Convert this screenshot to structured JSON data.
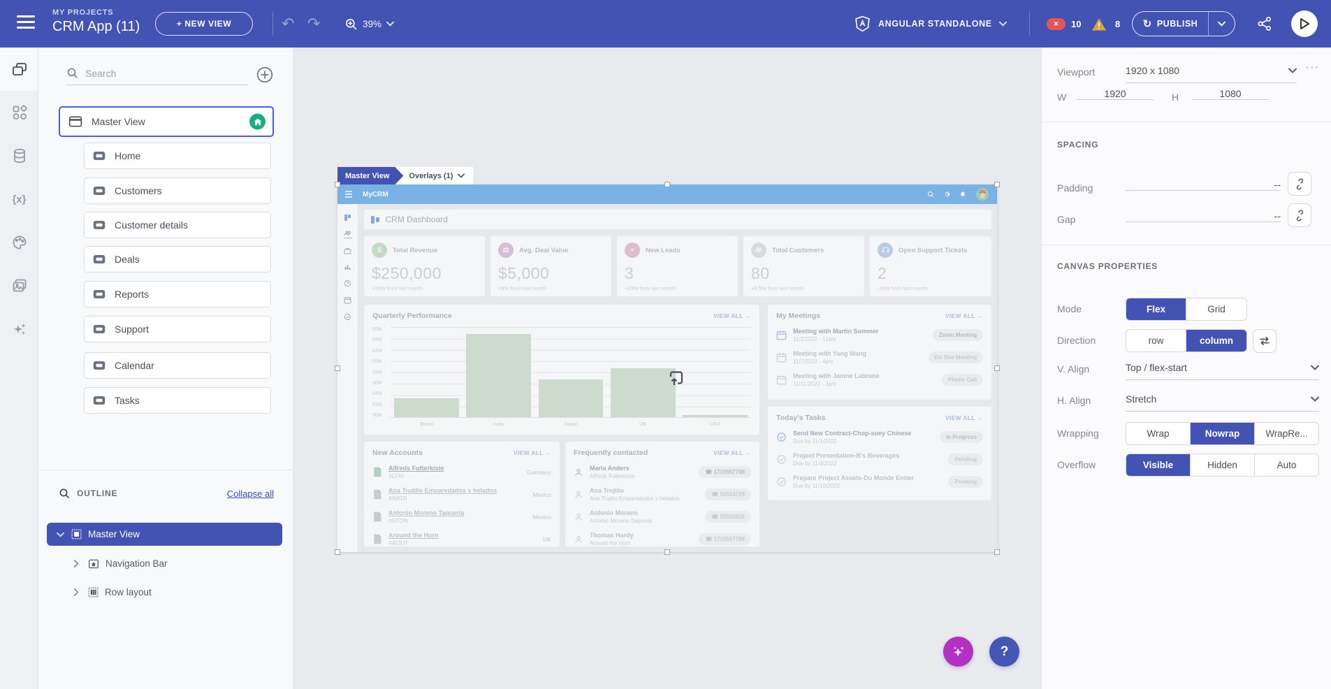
{
  "colors": {
    "accent_indigo": "#4353b4",
    "selection_blue": "#4d5be0",
    "app_header_blue": "#1e86e0",
    "home_badge_green": "#15b081",
    "error_red": "#e4555a",
    "warning_yellow": "#dda53e",
    "bar_green": "#b6ceb4",
    "fab_purple": "#b230c4",
    "fab_help_blue": "#4456b8"
  },
  "icons": {
    "hamburger": "menu",
    "undo": "↶",
    "redo": "↷",
    "zoom_in": "magnifier-plus",
    "chevron_down": "v",
    "share": "share-nodes",
    "play": "triangle",
    "publish": "↻",
    "search": "magnifier",
    "add_circle": "plus-circle",
    "home": "house",
    "phone": "☎"
  },
  "topbar": {
    "my_projects": "MY PROJECTS",
    "app_title": "CRM App (11)",
    "new_view": "+ NEW VIEW",
    "zoom": "39%",
    "framework": "ANGULAR STANDALONE",
    "error_count": "10",
    "warning_count": "8",
    "publish": "PUBLISH"
  },
  "rail": {
    "items": [
      "views",
      "components",
      "data",
      "variables",
      "theme",
      "assets",
      "ai-assistant"
    ]
  },
  "views_panel": {
    "search_placeholder": "Search",
    "master_view": "Master View",
    "items": [
      "Home",
      "Customers",
      "Customer details",
      "Deals",
      "Reports",
      "Support",
      "Calendar",
      "Tasks"
    ],
    "outline": {
      "title": "OUTLINE",
      "collapse_all": "Collapse all",
      "tree": [
        "Master View",
        "Navigation Bar",
        "Row layout"
      ]
    }
  },
  "canvas": {
    "tabs": {
      "master": "Master View",
      "overlays": "Overlays (1)"
    },
    "app": {
      "title": "MyCRM",
      "dashboard_title": "CRM Dashboard",
      "view_all": "VIEW ALL →",
      "stats": [
        {
          "label": "Total Revenue",
          "value": "$250,000",
          "delta": "+15%",
          "note": "from last month",
          "icon": "dollar",
          "color": "#a6cfa8"
        },
        {
          "label": "Avg. Deal Value",
          "value": "$5,000",
          "delta": "+5%",
          "note": "from last month",
          "icon": "scales",
          "color": "#c79ac9"
        },
        {
          "label": "New Leads",
          "value": "3",
          "delta": "+23%",
          "note": "from last month",
          "icon": "person-plus",
          "color": "#d898b4"
        },
        {
          "label": "Total Customers",
          "value": "80",
          "delta": "+0.5%",
          "note": "from last month",
          "icon": "people",
          "color": "#c9ccd1"
        },
        {
          "label": "Open Support Tickets",
          "value": "2",
          "delta": "-10%",
          "note": "from last month",
          "icon": "headset",
          "color": "#92b6dd"
        }
      ],
      "meetings": {
        "title": "My Meetings",
        "items": [
          {
            "title": "Meeting with Martin Sommer",
            "datetime": "11/2/2022 - 11am",
            "badge": "Zoom Meeting"
          },
          {
            "title": "Meeting with Yang Wang",
            "datetime": "11/7/2022 - 4pm",
            "badge": "On Site Meeting"
          },
          {
            "title": "Meeting with Janine Labrune",
            "datetime": "11/11/2022 - 3pm",
            "badge": "Phone Call"
          }
        ]
      },
      "tasks": {
        "title": "Today's Tasks",
        "items": [
          {
            "title": "Send New Contract-Chop-suey Chinese",
            "due": "Due by 11/1/2022",
            "badge": "In Progress"
          },
          {
            "title": "Project Presentation-B's Beverages",
            "due": "Due by 11/4/2022",
            "badge": "Pending"
          },
          {
            "title": "Prepare Project Assets-Du Monde Entier",
            "due": "Due by 11/10/2022",
            "badge": "Pending"
          }
        ]
      },
      "accounts": {
        "title": "New Accounts",
        "items": [
          {
            "name": "Alfreds Futterkiste",
            "code": "ALFKI",
            "country": "Germany"
          },
          {
            "name": "Ana Trujillo Emparedados y helados",
            "code": "ANATR",
            "country": "Mexico"
          },
          {
            "name": "Antonio Moreno Taqueria",
            "code": "ANTON",
            "country": "Mexico"
          },
          {
            "name": "Around the Horn",
            "code": "AROUT",
            "country": "UK"
          }
        ]
      },
      "contacts": {
        "title": "Frequently contacted",
        "items": [
          {
            "name": "Maria Anders",
            "company": "Alfreds Futterkiste",
            "phone": "1715557788"
          },
          {
            "name": "Ana Trujillo",
            "company": "Ana Trujillo Emparedados y helados",
            "phone": "55554729"
          },
          {
            "name": "Antonio Moreno",
            "company": "Antonio Moreno Taqueria",
            "phone": "55553932"
          },
          {
            "name": "Thomas Hardy",
            "company": "Around the Horn",
            "phone": "1715557788"
          }
        ]
      }
    }
  },
  "chart_data": {
    "type": "bar",
    "title": "Quarterly Performance",
    "categories": [
      "Brazil",
      "India",
      "Japan",
      "UK",
      "USA"
    ],
    "values": [
      53.3,
      64.7,
      56.7,
      58.7,
      50.4
    ],
    "unit": "M",
    "ylim": [
      50,
      66
    ],
    "yticks": [
      "66M",
      "64M",
      "62M",
      "60M",
      "58M",
      "56M",
      "54M",
      "52M",
      "50M"
    ],
    "grid": true,
    "legend": false,
    "bar_color": "#b6ceb4"
  },
  "inspector": {
    "viewport_label": "Viewport",
    "viewport_value": "1920 x 1080",
    "w_label": "W",
    "w_value": "1920",
    "h_label": "H",
    "h_value": "1080",
    "spacing_title": "SPACING",
    "padding_label": "Padding",
    "padding_value": "--",
    "gap_label": "Gap",
    "gap_value": "--",
    "canvas_props_title": "CANVAS PROPERTIES",
    "mode_label": "Mode",
    "mode_options": [
      "Flex",
      "Grid"
    ],
    "mode_selected": "Flex",
    "direction_label": "Direction",
    "direction_options": [
      "row",
      "column"
    ],
    "direction_selected": "column",
    "valign_label": "V. Align",
    "valign_value": "Top / flex-start",
    "halign_label": "H. Align",
    "halign_value": "Stretch",
    "wrapping_label": "Wrapping",
    "wrapping_options": [
      "Wrap",
      "Nowrap",
      "WrapRe..."
    ],
    "wrapping_selected": "Nowrap",
    "overflow_label": "Overflow",
    "overflow_options": [
      "Visible",
      "Hidden",
      "Auto"
    ],
    "overflow_selected": "Visible"
  },
  "fabs": {
    "help": "?"
  }
}
